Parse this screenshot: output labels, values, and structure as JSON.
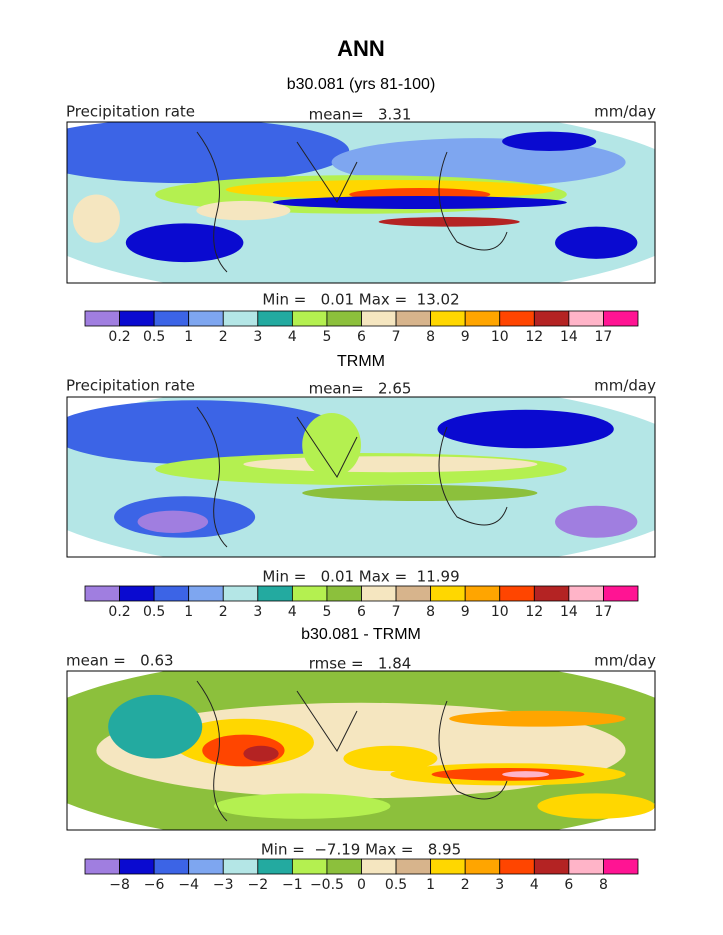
{
  "title": "ANN",
  "panels": [
    {
      "title": "b30.081 (yrs 81-100)",
      "left_label": "Precipitation rate",
      "center_label": "mean=   3.31",
      "right_label": "mm/day",
      "minmax_label": "Min =   0.01 Max =  13.02",
      "colorbar": {
        "colors": [
          "#a07ee0",
          "#0a0ad0",
          "#3c64e6",
          "#7ea6f0",
          "#b4e6e6",
          "#23aaa0",
          "#b4f050",
          "#8cc03c",
          "#f5e6c0",
          "#d7b48c",
          "#ffd700",
          "#ffa500",
          "#ff4500",
          "#b42323",
          "#ffb4c8",
          "#ff1493"
        ],
        "labels": [
          "0.2",
          "0.5",
          "1",
          "2",
          "3",
          "4",
          "5",
          "6",
          "7",
          "8",
          "9",
          "10",
          "12",
          "14",
          "17"
        ]
      }
    },
    {
      "title": "TRMM",
      "left_label": "Precipitation rate",
      "center_label": "mean=   2.65",
      "right_label": "mm/day",
      "minmax_label": "Min =   0.01 Max =  11.99",
      "colorbar": {
        "colors": [
          "#a07ee0",
          "#0a0ad0",
          "#3c64e6",
          "#7ea6f0",
          "#b4e6e6",
          "#23aaa0",
          "#b4f050",
          "#8cc03c",
          "#f5e6c0",
          "#d7b48c",
          "#ffd700",
          "#ffa500",
          "#ff4500",
          "#b42323",
          "#ffb4c8",
          "#ff1493"
        ],
        "labels": [
          "0.2",
          "0.5",
          "1",
          "2",
          "3",
          "4",
          "5",
          "6",
          "7",
          "8",
          "9",
          "10",
          "12",
          "14",
          "17"
        ]
      }
    },
    {
      "title": "b30.081 - TRMM",
      "left_label": "mean =   0.63",
      "center_label": "rmse =   1.84",
      "right_label": "mm/day",
      "minmax_label": "Min =  −7.19 Max =   8.95",
      "colorbar": {
        "colors": [
          "#a07ee0",
          "#0a0ad0",
          "#3c64e6",
          "#7ea6f0",
          "#b4e6e6",
          "#23aaa0",
          "#b4f050",
          "#8cc03c",
          "#f5e6c0",
          "#d7b48c",
          "#ffd700",
          "#ffa500",
          "#ff4500",
          "#b42323",
          "#ffb4c8",
          "#ff1493"
        ],
        "labels": [
          "−8",
          "−6",
          "−4",
          "−3",
          "−2",
          "−1",
          "−0.5",
          "0",
          "0.5",
          "1",
          "2",
          "3",
          "4",
          "6",
          "8"
        ]
      }
    }
  ]
}
